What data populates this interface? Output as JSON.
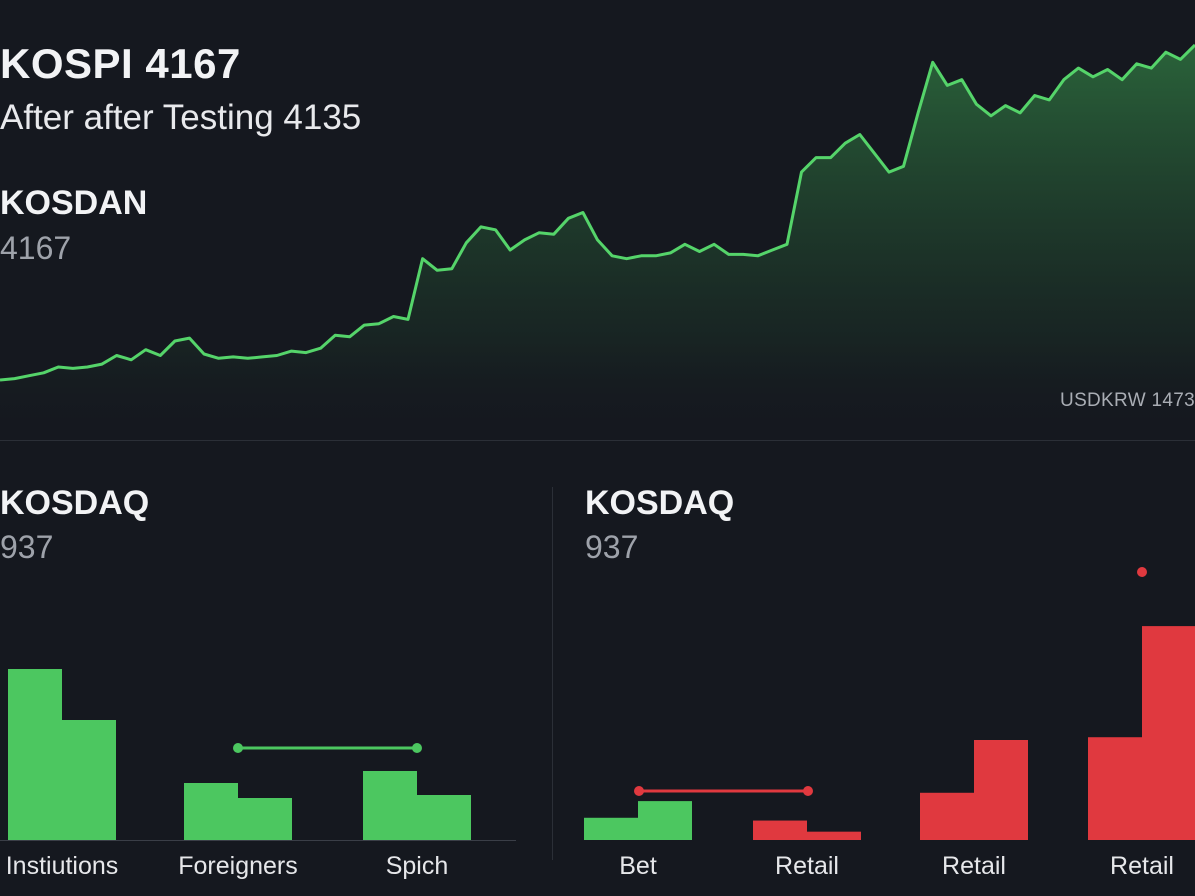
{
  "header": {
    "title": "KOSPI 4167",
    "subtitle": "After after Testing 4135"
  },
  "secondary_index": {
    "name": "KOSDAN",
    "value": "4167"
  },
  "fx_label": "USDKRW 1473",
  "left_panel": {
    "name": "KOSDAQ",
    "value": "937"
  },
  "right_panel": {
    "name": "KOSDAQ",
    "value": "937"
  },
  "colors": {
    "up": "#4cc760",
    "down": "#e0393f",
    "line": "#55d46a",
    "background": "#15181f"
  },
  "chart_data": [
    {
      "type": "area",
      "series": [
        {
          "values": [
            3935,
            3936,
            3938,
            3940,
            3944,
            3943,
            3944,
            3946,
            3952,
            3949,
            3956,
            3952,
            3962,
            3964,
            3953,
            3950,
            3951,
            3950,
            3951,
            3952,
            3955,
            3954,
            3957,
            3966,
            3965,
            3973,
            3974,
            3979,
            3977,
            4019,
            4011,
            4012,
            4030,
            4041,
            4039,
            4025,
            4032,
            4037,
            4036,
            4047,
            4051,
            4032,
            4021,
            4019,
            4021,
            4021,
            4023,
            4029,
            4024,
            4029,
            4022,
            4022,
            4021,
            4025,
            4029,
            4079,
            4089,
            4089,
            4099,
            4105,
            4092,
            4079,
            4083,
            4120,
            4155,
            4139,
            4143,
            4126,
            4118,
            4125,
            4120,
            4132,
            4129,
            4143,
            4151,
            4145,
            4150,
            4143,
            4154,
            4151,
            4162,
            4157,
            4167
          ]
        }
      ]
    },
    {
      "type": "bar",
      "categories": [
        "Instiutions",
        "Foreigners",
        "Spich"
      ],
      "series": [
        {
          "values": [
            57,
            19,
            23
          ]
        },
        {
          "values": [
            40,
            14,
            15
          ]
        }
      ],
      "ylim": [
        0,
        80
      ]
    },
    {
      "type": "bar",
      "categories": [
        "Bet",
        "Retail",
        "Retail",
        "Retail"
      ],
      "series": [
        {
          "values": [
            8,
            7,
            17,
            37
          ]
        },
        {
          "values": [
            14,
            3,
            36,
            77
          ]
        }
      ],
      "colors": [
        "up",
        "down",
        "down",
        "down"
      ],
      "ylim": [
        0,
        90
      ]
    }
  ]
}
